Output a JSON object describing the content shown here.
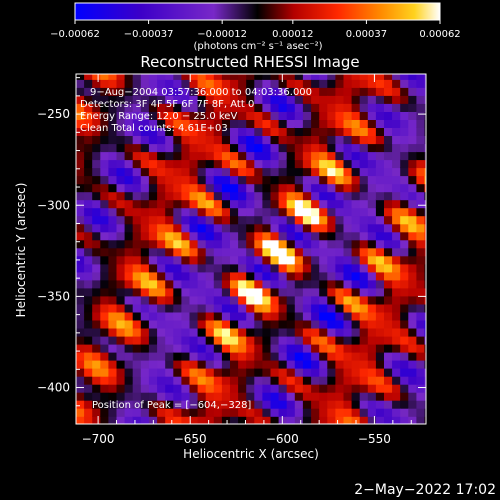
{
  "chart_data": {
    "type": "heatmap",
    "title": "Reconstructed RHESSI Image",
    "xlabel": "Heliocentric X (arcsec)",
    "ylabel": "Heliocentric Y (arcsec)",
    "xlim": [
      -712,
      -522
    ],
    "ylim": [
      -420,
      -228
    ],
    "xticks": [
      -700,
      -650,
      -600,
      -550
    ],
    "yticks": [
      -250,
      -300,
      -350,
      -400
    ],
    "xtick_labels": [
      "−700",
      "−650",
      "−600",
      "−550"
    ],
    "ytick_labels": [
      "−250",
      "−300",
      "−350",
      "−400"
    ],
    "colorbar": {
      "range": [
        -0.00062,
        0.00062
      ],
      "ticks": [
        -0.00062,
        -0.00037,
        -0.00012,
        0.00012,
        0.00037,
        0.00062
      ],
      "tick_labels": [
        "−0.00062",
        "−0.00037",
        "−0.00012",
        "0.00012",
        "0.00037",
        "0.00062"
      ],
      "unit_label": "(photons cm⁻² s⁻¹ asec⁻²)",
      "colors": [
        "#0000ff",
        "#3c00c8",
        "#7828c8",
        "#000000",
        "#b40000",
        "#ff2800",
        "#ff8c00",
        "#ffd21e",
        "#ffff96",
        "#ffffff"
      ]
    },
    "peak": {
      "x": -604,
      "y": -328
    },
    "image_model": {
      "stripe_direction_deg": -35,
      "stripe_spacing_arcsec": 27,
      "envelope_center": [
        -604,
        -328
      ],
      "envelope_sigma_arcsec": 55
    },
    "annotations": [
      "9−Aug−2004 03:57:36.000 to 04:03:36.000",
      "Detectors: 3F 4F 5F 6F 7F 8F, Att 0",
      "Energy Range: 12.0 − 25.0 keV",
      "Clean    Total counts: 4.61E+03",
      "Position of Peak = [−604,−328]"
    ]
  },
  "footer_date": "2−May−2022 17:02"
}
